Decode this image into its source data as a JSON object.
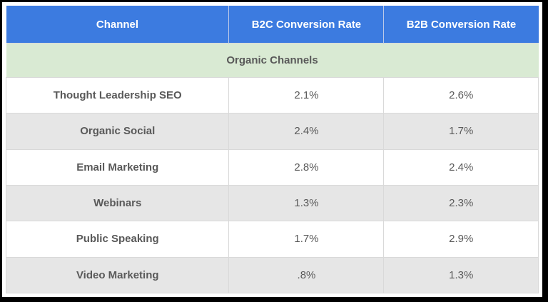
{
  "table": {
    "columns": [
      "Channel",
      "B2C Conversion Rate",
      "B2B Conversion Rate"
    ],
    "section_label": "Organic Channels",
    "rows": [
      {
        "channel": "Thought Leadership SEO",
        "b2c": "2.1%",
        "b2b": "2.6%"
      },
      {
        "channel": "Organic Social",
        "b2c": "2.4%",
        "b2b": "1.7%"
      },
      {
        "channel": "Email Marketing",
        "b2c": "2.8%",
        "b2b": "2.4%"
      },
      {
        "channel": "Webinars",
        "b2c": "1.3%",
        "b2b": "2.3%"
      },
      {
        "channel": "Public Speaking",
        "b2c": "1.7%",
        "b2b": "2.9%"
      },
      {
        "channel": "Video Marketing",
        "b2c": ".8%",
        "b2b": "1.3%"
      }
    ],
    "colors": {
      "header_bg": "#3c7be0",
      "header_text": "#ffffff",
      "section_bg": "#d9ead3",
      "alt_row_bg": "#e6e6e6",
      "body_text": "#595959",
      "grid_line": "#d9d9d9",
      "outer_frame": "#000000"
    }
  }
}
